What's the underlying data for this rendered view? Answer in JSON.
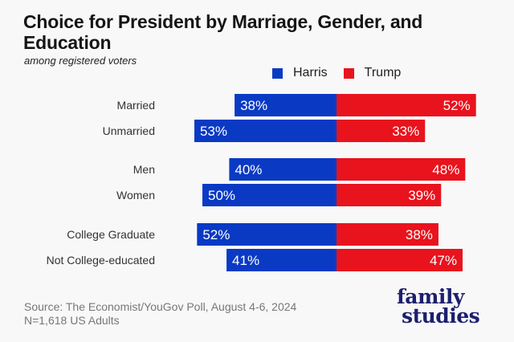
{
  "chart_data": {
    "type": "bar",
    "orientation": "horizontal-diverging",
    "title": "Choice for President by Marriage, Gender, and Education",
    "subtitle": "among registered voters",
    "categories": [
      "Married",
      "Unmarried",
      "Men",
      "Women",
      "College Graduate",
      "Not College-educated"
    ],
    "groups": [
      [
        "Married",
        "Unmarried"
      ],
      [
        "Men",
        "Women"
      ],
      [
        "College Graduate",
        "Not College-educated"
      ]
    ],
    "series": [
      {
        "name": "Harris",
        "color": "#0a3ac4",
        "values": [
          38,
          53,
          40,
          50,
          52,
          41
        ],
        "labels": [
          "38%",
          "53%",
          "40%",
          "50%",
          "52%",
          "41%"
        ]
      },
      {
        "name": "Trump",
        "color": "#e8131d",
        "values": [
          52,
          33,
          48,
          39,
          38,
          47
        ],
        "labels": [
          "52%",
          "33%",
          "48%",
          "39%",
          "38%",
          "47%"
        ]
      }
    ],
    "legend": {
      "position": "top-right",
      "entries": [
        "Harris",
        "Trump"
      ]
    },
    "value_unit": "%",
    "grid": false
  },
  "footer": {
    "source": "Source: The Economist/YouGov Poll, August 4-6, 2024",
    "sample": "N=1,618 US Adults"
  },
  "logo": {
    "line1": "family",
    "line2": "studies",
    "color": "#1c1f6e"
  }
}
